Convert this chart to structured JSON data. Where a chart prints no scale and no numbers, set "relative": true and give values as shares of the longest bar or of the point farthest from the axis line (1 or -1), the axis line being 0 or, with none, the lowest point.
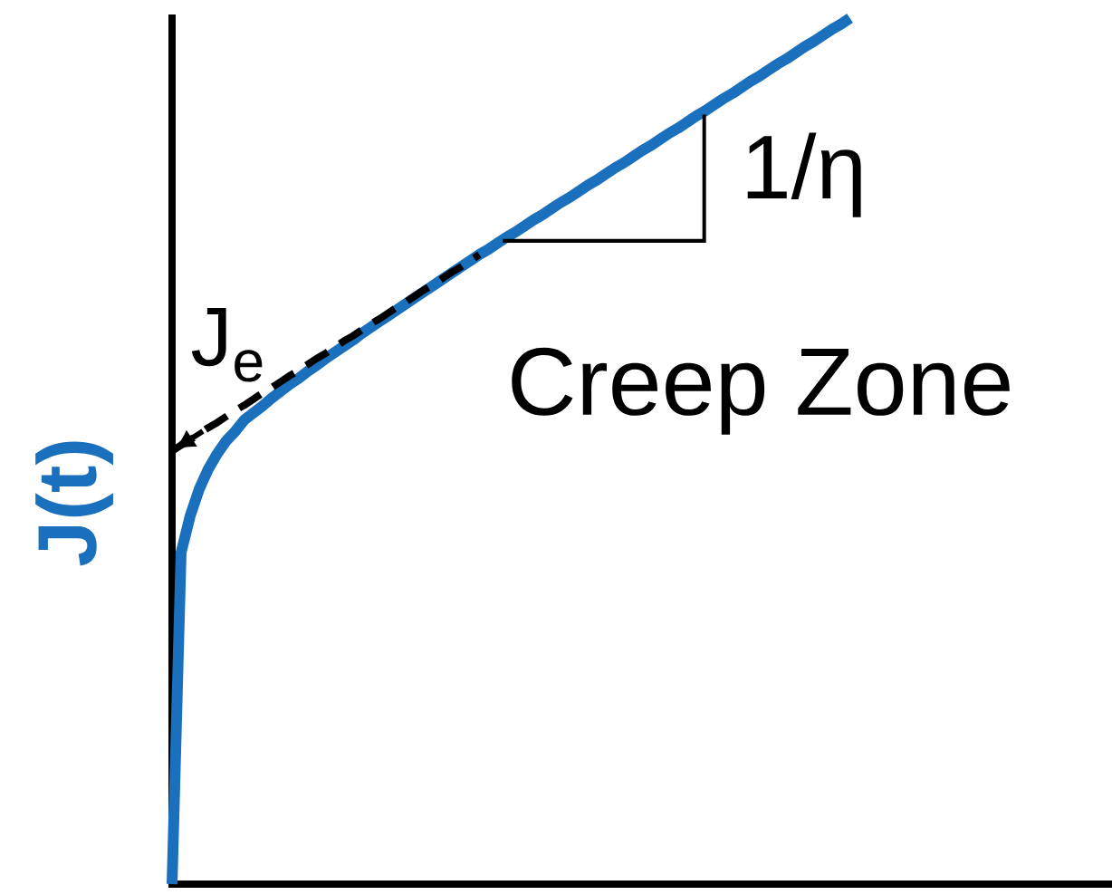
{
  "chart_data": {
    "type": "line",
    "relative": true,
    "ylabel": "J(t)",
    "categories": [
      null,
      null,
      null,
      null,
      null,
      null,
      null,
      null,
      null,
      null,
      null,
      null,
      null,
      null,
      null,
      null,
      null,
      null,
      null,
      null,
      null,
      null,
      null,
      null,
      null,
      null,
      null,
      null,
      null,
      null,
      null,
      null,
      null,
      null,
      null,
      null,
      null,
      null,
      null,
      null,
      null,
      null,
      null,
      null,
      null,
      null,
      null,
      null,
      null,
      null,
      null,
      null,
      null,
      null,
      null,
      null,
      null,
      null,
      null,
      null,
      null,
      null,
      null,
      null,
      null,
      null,
      null,
      null,
      null,
      null,
      null,
      null,
      null,
      null,
      null,
      null,
      null,
      null,
      null,
      null,
      null,
      null,
      null,
      null,
      null,
      null,
      null,
      null,
      null,
      null,
      null,
      null,
      null,
      null,
      null,
      null,
      null,
      null,
      null,
      null,
      null,
      null,
      null,
      null,
      null
    ],
    "series": [
      {
        "color": "#1a70bd",
        "values": [
          0,
          0.383,
          0.425,
          0.456,
          0.479,
          0.497,
          0.512,
          0.523,
          0.536,
          0.544,
          0.552,
          0.561,
          0.569,
          0.577,
          0.584,
          0.592,
          0.599,
          0.607,
          0.614,
          0.621,
          0.628,
          0.636,
          0.643,
          0.65,
          0.657,
          0.664,
          0.671,
          0.678,
          0.685,
          0.692,
          0.699,
          0.706,
          0.713,
          0.72,
          0.727,
          0.733,
          0.74,
          0.747,
          0.753,
          0.76,
          0.767,
          0.773,
          0.78,
          0.787,
          0.793,
          0.8,
          0.807,
          0.813,
          0.82,
          0.827,
          0.833,
          0.84,
          0.847,
          0.853,
          0.86,
          0.867,
          0.873,
          0.88,
          0.887,
          0.893,
          0.9,
          0.907,
          0.913,
          0.92,
          0.927,
          0.933,
          0.94,
          0.947,
          0.953,
          0.96,
          0.967,
          0.973,
          0.98,
          0.987,
          0.993,
          1,
          null,
          null,
          null,
          null,
          null,
          null,
          null,
          null,
          null,
          null,
          null,
          null,
          null,
          null,
          null,
          null,
          null,
          null,
          null,
          null,
          null,
          null,
          null,
          null,
          null,
          null,
          null,
          null,
          null
        ]
      },
      {
        "color": "#000000",
        "line_style": "dashed",
        "values": [
          0.5,
          0.507,
          0.513,
          0.52,
          0.527,
          0.533,
          0.54,
          0.547,
          0.553,
          0.56,
          0.567,
          0.573,
          0.58,
          0.587,
          0.593,
          0.6,
          0.607,
          0.613,
          0.62,
          0.627,
          0.633,
          0.64,
          0.647,
          0.653,
          0.66,
          0.667,
          0.673,
          0.68,
          0.687,
          0.693,
          0.7,
          0.707,
          0.713,
          0.72,
          0.727,
          null,
          null,
          null,
          null,
          null,
          null,
          null,
          null,
          null,
          null,
          null,
          null,
          null,
          null,
          null,
          null,
          null,
          null,
          null,
          null,
          null,
          null,
          null,
          null,
          null,
          null,
          null,
          null,
          null,
          null,
          null,
          null,
          null,
          null,
          null,
          null,
          null,
          null,
          null,
          null,
          null,
          null,
          null,
          null,
          null,
          null,
          null,
          null,
          null,
          null,
          null,
          null,
          null,
          null,
          null,
          null,
          null,
          null,
          null,
          null,
          null,
          null,
          null,
          null,
          null,
          null,
          null,
          null,
          null,
          null
        ]
      }
    ],
    "annotations": [
      "J$_{e}$",
      "1/η",
      "Creep Zone"
    ]
  }
}
